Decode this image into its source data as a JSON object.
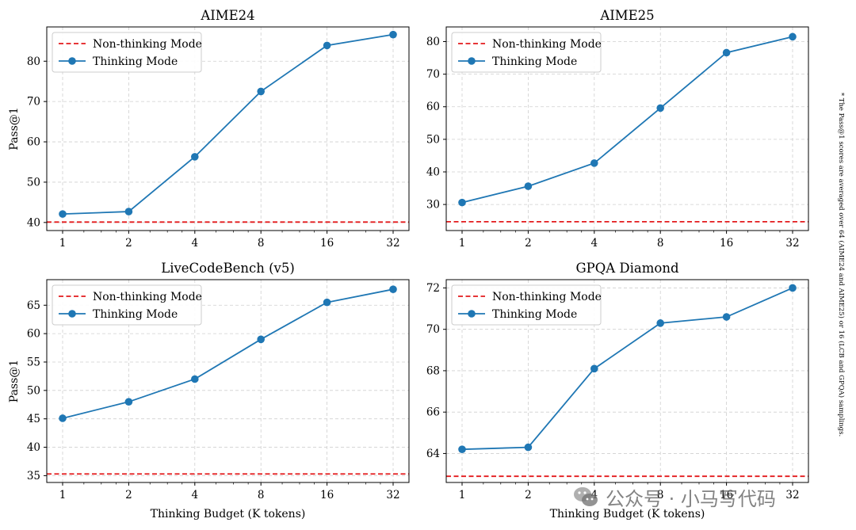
{
  "figure_note": "* The Pass@1 scores are averaged over 64 (AIME24 and AIME25) or 16 (LCB and GPQA) samplings.",
  "watermark": "公众号 · 小马写代码",
  "colors": {
    "thinking": "#1f77b4",
    "non_thinking": "#e31a1c",
    "grid": "#cfcfcf"
  },
  "chart_data": [
    {
      "type": "line",
      "title": "AIME24",
      "xlabel": "",
      "ylabel": "Pass@1",
      "categories": [
        "1",
        "2",
        "4",
        "8",
        "16",
        "32"
      ],
      "ylim": [
        38.0,
        88.5
      ],
      "yticks": [
        40,
        50,
        60,
        70,
        80
      ],
      "grid": true,
      "legend": "top-left",
      "series": [
        {
          "name": "Non-thinking Mode",
          "style": "dashed",
          "value": 40.1
        },
        {
          "name": "Thinking Mode",
          "style": "line-marker",
          "values": [
            42.1,
            42.7,
            56.3,
            72.5,
            83.9,
            86.6
          ]
        }
      ]
    },
    {
      "type": "line",
      "title": "AIME25",
      "xlabel": "",
      "ylabel": "",
      "categories": [
        "1",
        "2",
        "4",
        "8",
        "16",
        "32"
      ],
      "ylim": [
        22.0,
        84.5
      ],
      "yticks": [
        30,
        40,
        50,
        60,
        70,
        80
      ],
      "grid": true,
      "legend": "top-left",
      "series": [
        {
          "name": "Non-thinking Mode",
          "style": "dashed",
          "value": 24.7
        },
        {
          "name": "Thinking Mode",
          "style": "line-marker",
          "values": [
            30.6,
            35.6,
            42.7,
            59.6,
            76.6,
            81.5
          ]
        }
      ]
    },
    {
      "type": "line",
      "title": "LiveCodeBench (v5)",
      "xlabel": "Thinking Budget (K tokens)",
      "ylabel": "Pass@1",
      "categories": [
        "1",
        "2",
        "4",
        "8",
        "16",
        "32"
      ],
      "ylim": [
        33.8,
        69.5
      ],
      "yticks": [
        35,
        40,
        45,
        50,
        55,
        60,
        65
      ],
      "grid": true,
      "legend": "top-left",
      "series": [
        {
          "name": "Non-thinking Mode",
          "style": "dashed",
          "value": 35.3
        },
        {
          "name": "Thinking Mode",
          "style": "line-marker",
          "values": [
            45.1,
            48.0,
            52.0,
            59.0,
            65.5,
            67.8
          ]
        }
      ]
    },
    {
      "type": "line",
      "title": "GPQA Diamond",
      "xlabel": "Thinking Budget (K tokens)",
      "ylabel": "",
      "categories": [
        "1",
        "2",
        "4",
        "8",
        "16",
        "32"
      ],
      "ylim": [
        62.6,
        72.4
      ],
      "yticks": [
        64,
        66,
        68,
        70,
        72
      ],
      "grid": true,
      "legend": "top-left",
      "series": [
        {
          "name": "Non-thinking Mode",
          "style": "dashed",
          "value": 62.9
        },
        {
          "name": "Thinking Mode",
          "style": "line-marker",
          "values": [
            64.2,
            64.3,
            68.1,
            70.3,
            70.6,
            72.0
          ]
        }
      ]
    }
  ]
}
